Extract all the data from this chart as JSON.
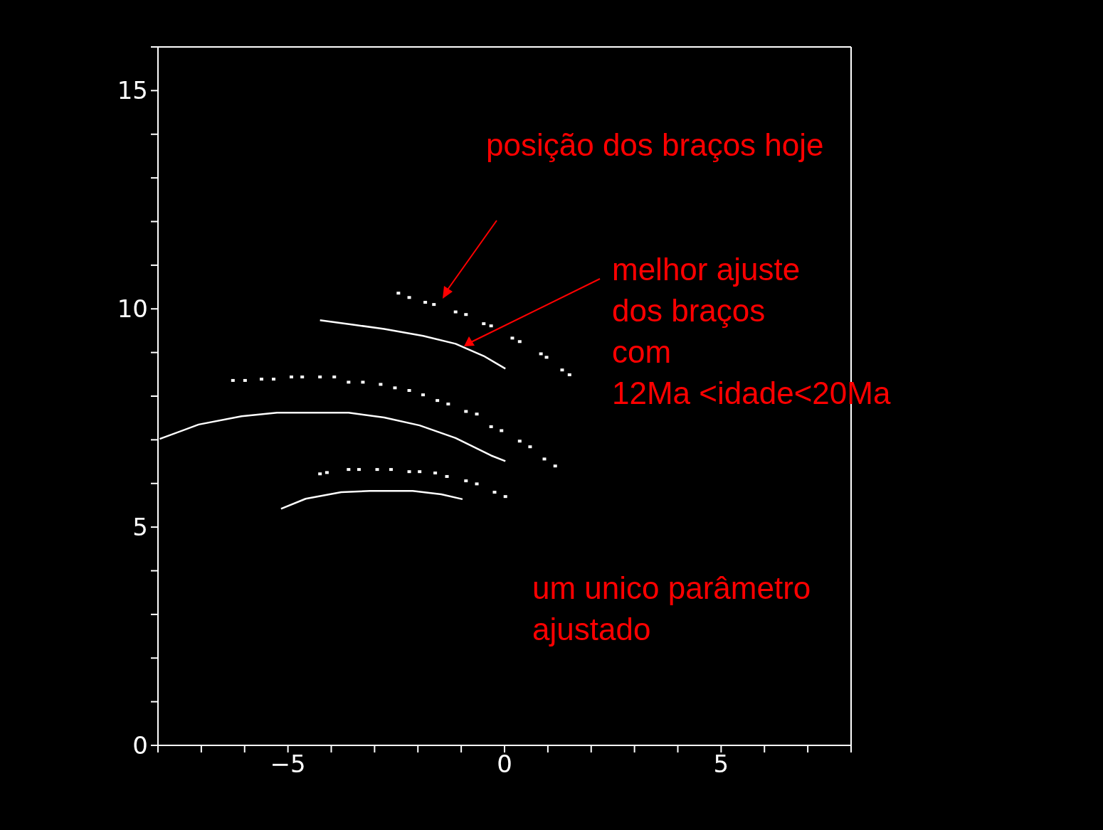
{
  "chart_data": {
    "type": "scatter",
    "annotations": [
      "posição dos braços hoje",
      "melhor ajuste\ndos braços\ncom\n12Ma <idade<20Ma",
      "um unico parâmetro\najustado"
    ],
    "xlim": [
      -8,
      8
    ],
    "xticks": [
      {
        "value": -8,
        "label": null
      },
      {
        "value": -7,
        "label": null
      },
      {
        "value": -6,
        "label": null
      },
      {
        "value": -5,
        "label": "−5"
      },
      {
        "value": -4,
        "label": null
      },
      {
        "value": -3,
        "label": null
      },
      {
        "value": -2,
        "label": null
      },
      {
        "value": -1,
        "label": null
      },
      0,
      {
        "value": 1,
        "label": null
      },
      {
        "value": 2,
        "label": null
      },
      {
        "value": 3,
        "label": null
      },
      {
        "value": 4,
        "label": null
      },
      5,
      {
        "value": 6,
        "label": null
      },
      {
        "value": 7,
        "label": null
      },
      {
        "value": 8,
        "label": null
      }
    ],
    "ylim": [
      0,
      16
    ],
    "yticks": [
      0,
      {
        "value": 1,
        "label": null
      },
      {
        "value": 2,
        "label": null
      },
      {
        "value": 3,
        "label": null
      },
      {
        "value": 4,
        "label": null
      },
      5,
      {
        "value": 6,
        "label": null
      },
      {
        "value": 7,
        "label": null
      },
      {
        "value": 8,
        "label": null
      },
      {
        "value": 9,
        "label": null
      },
      10,
      {
        "value": 11,
        "label": null
      },
      {
        "value": 12,
        "label": null
      },
      {
        "value": 13,
        "label": null
      },
      {
        "value": 14,
        "label": null
      },
      15,
      {
        "value": 16,
        "label": null
      }
    ],
    "grid": false,
    "series": [
      {
        "marker": "square",
        "color": "#ffffff",
        "x": [
          -2.45,
          -2.2,
          -1.83,
          -1.63,
          -1.13,
          -0.89,
          -0.48,
          -0.31,
          0.18,
          0.35,
          0.84,
          0.97,
          1.33,
          1.5
        ],
        "values": [
          10.36,
          10.26,
          10.15,
          10.1,
          9.93,
          9.87,
          9.66,
          9.61,
          9.33,
          9.25,
          8.97,
          8.89,
          8.6,
          8.49
        ]
      },
      {
        "marker": "square",
        "color": "#ffffff",
        "x": [
          -6.27,
          -5.99,
          -5.61,
          -5.33,
          -4.92,
          -4.67,
          -4.26,
          -3.93,
          -3.6,
          -3.27,
          -2.86,
          -2.53,
          -2.2,
          -1.88,
          -1.55,
          -1.3,
          -0.89,
          -0.64,
          -0.31,
          -0.07,
          0.35,
          0.59,
          0.92,
          1.17
        ],
        "values": [
          8.36,
          8.36,
          8.39,
          8.39,
          8.44,
          8.44,
          8.44,
          8.44,
          8.32,
          8.32,
          8.27,
          8.19,
          8.13,
          8.03,
          7.9,
          7.82,
          7.65,
          7.59,
          7.3,
          7.21,
          6.97,
          6.84,
          6.56,
          6.4
        ]
      },
      {
        "marker": "square",
        "color": "#ffffff",
        "x": [
          -4.26,
          -4.1,
          -3.6,
          -3.36,
          -2.94,
          -2.62,
          -2.2,
          -1.96,
          -1.6,
          -1.33,
          -0.89,
          -0.64,
          -0.23,
          0.02
        ],
        "values": [
          6.22,
          6.25,
          6.32,
          6.32,
          6.32,
          6.32,
          6.27,
          6.27,
          6.24,
          6.16,
          6.06,
          5.99,
          5.8,
          5.7
        ]
      },
      {
        "type": "line",
        "marker": "none",
        "color": "#ffffff",
        "x": [
          -4.26,
          -3.44,
          -2.78,
          -1.88,
          -1.13,
          -0.48,
          0.02
        ],
        "values": [
          9.74,
          9.63,
          9.54,
          9.38,
          9.2,
          8.92,
          8.63
        ]
      },
      {
        "type": "line",
        "marker": "none",
        "color": "#ffffff",
        "x": [
          -7.96,
          -7.06,
          -6.07,
          -5.25,
          -3.6,
          -2.78,
          -1.96,
          -1.13,
          -0.31,
          0.02
        ],
        "values": [
          7.02,
          7.35,
          7.54,
          7.62,
          7.62,
          7.51,
          7.33,
          7.04,
          6.64,
          6.51
        ]
      },
      {
        "type": "line",
        "marker": "none",
        "color": "#ffffff",
        "x": [
          -5.16,
          -4.59,
          -3.77,
          -3.11,
          -2.12,
          -1.46,
          -0.97
        ],
        "values": [
          5.42,
          5.65,
          5.8,
          5.83,
          5.83,
          5.75,
          5.64
        ]
      }
    ]
  }
}
